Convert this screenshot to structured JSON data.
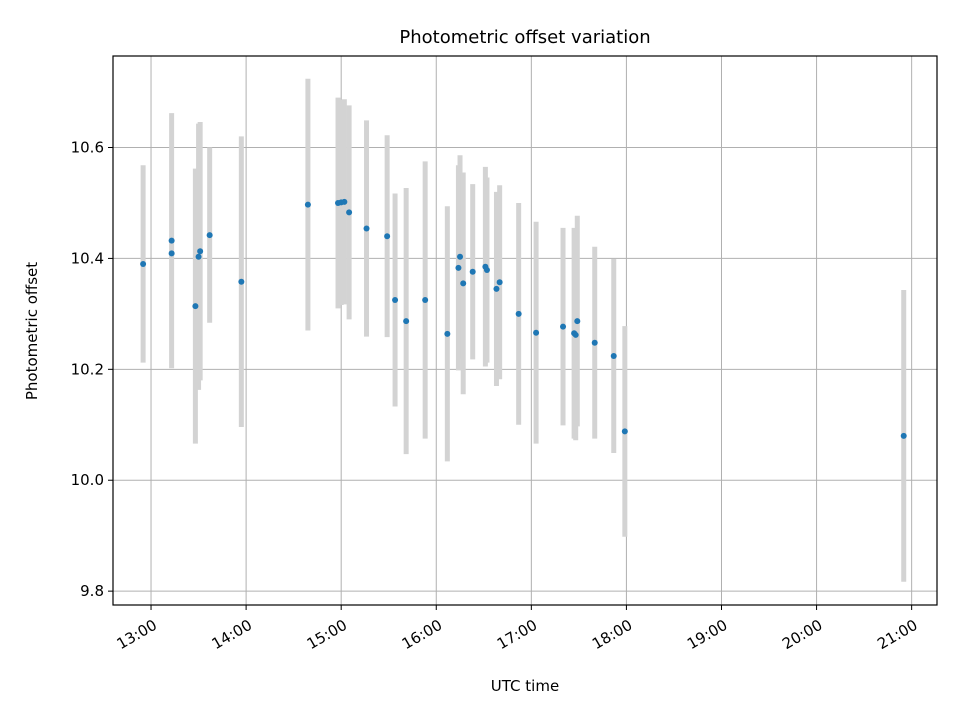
{
  "chart_data": {
    "type": "scatter",
    "title": "Photometric offset variation",
    "xlabel": "UTC time",
    "ylabel": "Photometric offset",
    "x_unit": "UTC hour",
    "xlim": [
      "12:36",
      "21:16"
    ],
    "ylim": [
      9.775,
      10.765
    ],
    "grid": true,
    "x_ticks": [
      "13:00",
      "14:00",
      "15:00",
      "16:00",
      "17:00",
      "18:00",
      "19:00",
      "20:00",
      "21:00"
    ],
    "y_ticks": [
      "9.8",
      "10.0",
      "10.2",
      "10.4",
      "10.6"
    ],
    "colors": {
      "points": "#1f77b4",
      "errorbars": "#d3d3d3",
      "grid": "#b0b0b0"
    },
    "series": [
      {
        "points": [
          {
            "x": "12:55",
            "y": 10.39,
            "err": 0.178
          },
          {
            "x": "13:13",
            "y": 10.432,
            "err": 0.23
          },
          {
            "x": "13:13",
            "y": 10.409,
            "err": 0.0
          },
          {
            "x": "13:28",
            "y": 10.314,
            "err": 0.248
          },
          {
            "x": "13:30",
            "y": 10.403,
            "err": 0.24
          },
          {
            "x": "13:31",
            "y": 10.413,
            "err": 0.233
          },
          {
            "x": "13:37",
            "y": 10.442,
            "err": 0.158
          },
          {
            "x": "13:57",
            "y": 10.358,
            "err": 0.262
          },
          {
            "x": "14:39",
            "y": 10.497,
            "err": 0.227
          },
          {
            "x": "14:58",
            "y": 10.5,
            "err": 0.19
          },
          {
            "x": "15:00",
            "y": 10.501,
            "err": 0.185
          },
          {
            "x": "15:02",
            "y": 10.502,
            "err": 0.185
          },
          {
            "x": "15:05",
            "y": 10.483,
            "err": 0.193
          },
          {
            "x": "15:16",
            "y": 10.454,
            "err": 0.195
          },
          {
            "x": "15:29",
            "y": 10.44,
            "err": 0.182
          },
          {
            "x": "15:34",
            "y": 10.325,
            "err": 0.192
          },
          {
            "x": "15:41",
            "y": 10.287,
            "err": 0.24
          },
          {
            "x": "15:53",
            "y": 10.325,
            "err": 0.25
          },
          {
            "x": "16:07",
            "y": 10.264,
            "err": 0.23
          },
          {
            "x": "16:14",
            "y": 10.383,
            "err": 0.185
          },
          {
            "x": "16:15",
            "y": 10.403,
            "err": 0.183
          },
          {
            "x": "16:17",
            "y": 10.355,
            "err": 0.2
          },
          {
            "x": "16:23",
            "y": 10.376,
            "err": 0.158
          },
          {
            "x": "16:31",
            "y": 10.385,
            "err": 0.18
          },
          {
            "x": "16:32",
            "y": 10.379,
            "err": 0.167
          },
          {
            "x": "16:38",
            "y": 10.345,
            "err": 0.175
          },
          {
            "x": "16:40",
            "y": 10.357,
            "err": 0.175
          },
          {
            "x": "16:52",
            "y": 10.3,
            "err": 0.2
          },
          {
            "x": "17:03",
            "y": 10.266,
            "err": 0.2
          },
          {
            "x": "17:20",
            "y": 10.277,
            "err": 0.178
          },
          {
            "x": "17:27",
            "y": 10.265,
            "err": 0.19
          },
          {
            "x": "17:28",
            "y": 10.262,
            "err": 0.19
          },
          {
            "x": "17:29",
            "y": 10.287,
            "err": 0.19
          },
          {
            "x": "17:40",
            "y": 10.248,
            "err": 0.173
          },
          {
            "x": "17:52",
            "y": 10.224,
            "err": 0.175
          },
          {
            "x": "17:59",
            "y": 10.088,
            "err": 0.19
          },
          {
            "x": "20:55",
            "y": 10.08,
            "err": 0.263
          }
        ]
      }
    ]
  }
}
